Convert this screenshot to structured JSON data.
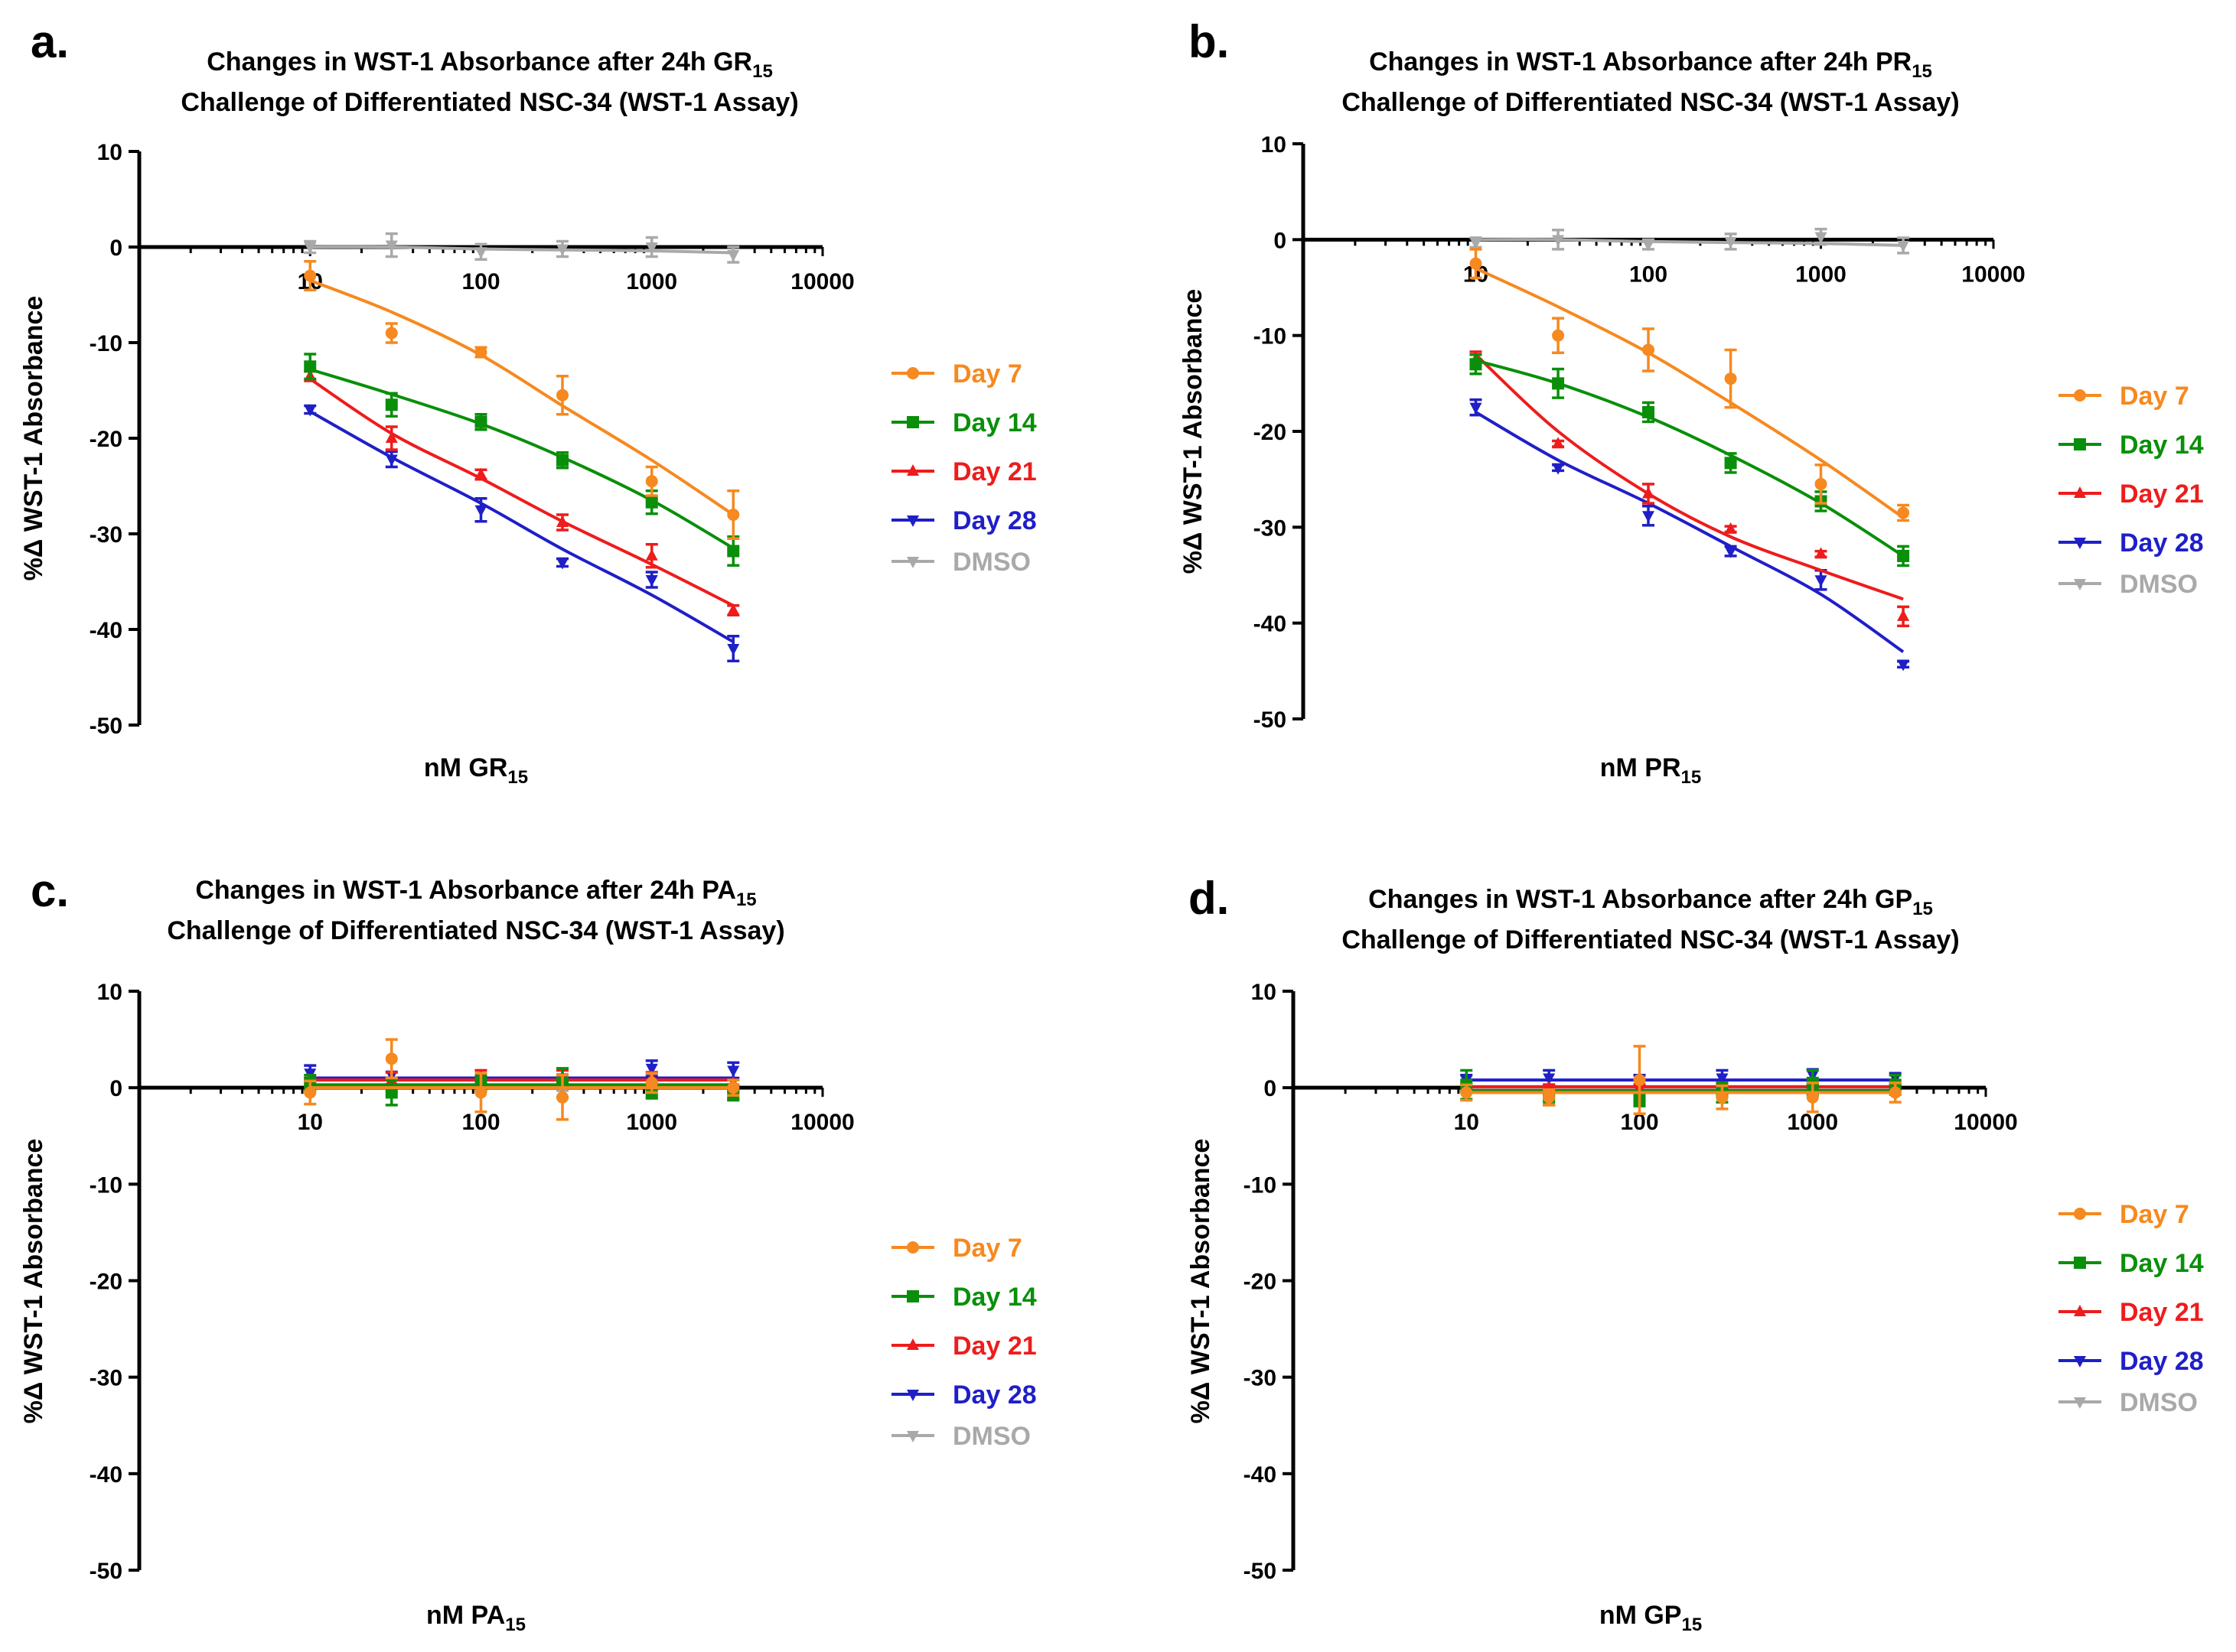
{
  "colors": {
    "Day 7": "#f6891f",
    "Day 14": "#0a8f0a",
    "Day 21": "#ee1c1c",
    "Day 28": "#1f1fc8",
    "DMSO": "#a9a9a9"
  },
  "chart_data": [
    {
      "letter": "a.",
      "type": "line",
      "title_line1": "Changes in WST-1 Absorbance after 24h GR",
      "title_sub": "15",
      "title_line2": "Challenge of Differentiated NSC-34 (WST-1 Assay)",
      "xlabel": "nM GR",
      "xlabel_sub": "15",
      "ylabel": "%Δ WST-1 Absorbance",
      "xscale": "log",
      "xlim": [
        1,
        10000
      ],
      "ylim": [
        -50,
        10
      ],
      "xtick_labels": [
        "10",
        "100",
        "1000",
        "10000"
      ],
      "ytick_labels": [
        "10",
        "0",
        "-10",
        "-20",
        "-30",
        "-40",
        "-50"
      ],
      "legend": [
        "Day 7",
        "Day 14",
        "Day 21",
        "Day 28",
        "DMSO"
      ],
      "x": [
        10,
        30,
        100,
        300,
        1000,
        3000
      ],
      "series": [
        {
          "name": "Day 7",
          "values": [
            -3,
            -9,
            -11,
            -15.5,
            -24.5,
            -28
          ],
          "errors": [
            1.5,
            1,
            0.5,
            2,
            1.5,
            2.5
          ],
          "fit": [
            -3.5,
            -6.8,
            -11.3,
            -16.6,
            -22.3,
            -28.0
          ]
        },
        {
          "name": "Day 14",
          "values": [
            -12.5,
            -16.5,
            -18.3,
            -22.3,
            -26.7,
            -31.8
          ],
          "errors": [
            1.3,
            1.2,
            0.8,
            0.8,
            1.2,
            1.5
          ],
          "fit": [
            -12.8,
            -15.4,
            -18.5,
            -22.0,
            -26.5,
            -31.5
          ]
        },
        {
          "name": "Day 21",
          "values": [
            -13.5,
            -20,
            -23.8,
            -28.8,
            -32.3,
            -38
          ],
          "errors": [
            0.5,
            1.2,
            0.5,
            0.8,
            1.2,
            0.5
          ],
          "fit": [
            -13.8,
            -19.5,
            -24.2,
            -28.7,
            -33.2,
            -37.5
          ]
        },
        {
          "name": "Day 28",
          "values": [
            -17,
            -22.2,
            -27.5,
            -33,
            -34.8,
            -42
          ],
          "errors": [
            0.4,
            0.8,
            1.2,
            0.4,
            0.8,
            1.3
          ],
          "fit": [
            -17.2,
            -22.0,
            -26.8,
            -31.6,
            -36.4,
            -41.3
          ]
        },
        {
          "name": "DMSO",
          "values": [
            0,
            0.2,
            -0.5,
            -0.2,
            0,
            -0.8
          ],
          "errors": [
            0.6,
            1.2,
            0.8,
            0.8,
            1.0,
            0.8
          ],
          "fit": [
            0,
            0,
            -0.2,
            -0.3,
            -0.4,
            -0.6
          ]
        }
      ]
    },
    {
      "letter": "b.",
      "type": "line",
      "title_line1": "Changes in WST-1 Absorbance after 24h PR",
      "title_sub": "15",
      "title_line2": "Challenge of Differentiated NSC-34 (WST-1 Assay)",
      "xlabel": "nM PR",
      "xlabel_sub": "15",
      "ylabel": "%Δ WST-1 Absorbance",
      "xscale": "log",
      "xlim": [
        1,
        10000
      ],
      "ylim": [
        -50,
        10
      ],
      "xtick_labels": [
        "10",
        "100",
        "1000",
        "10000"
      ],
      "ytick_labels": [
        "10",
        "0",
        "-10",
        "-20",
        "-30",
        "-40",
        "-50"
      ],
      "legend": [
        "Day 7",
        "Day 14",
        "Day 21",
        "Day 28",
        "DMSO"
      ],
      "x": [
        10,
        30,
        100,
        300,
        1000,
        3000
      ],
      "series": [
        {
          "name": "Day 7",
          "values": [
            -2.5,
            -10,
            -11.5,
            -14.5,
            -25.5,
            -28.5
          ],
          "errors": [
            1.5,
            1.8,
            2.2,
            3.0,
            2.0,
            0.8
          ],
          "fit": [
            -3.0,
            -7.0,
            -11.8,
            -17.0,
            -23.0,
            -29.0
          ]
        },
        {
          "name": "Day 14",
          "values": [
            -13,
            -15,
            -18,
            -23.3,
            -27.3,
            -33
          ],
          "errors": [
            1.0,
            1.5,
            1.0,
            1.0,
            1.0,
            1.0
          ],
          "fit": [
            -12.6,
            -15.0,
            -18.5,
            -22.5,
            -27.5,
            -33.0
          ]
        },
        {
          "name": "Day 21",
          "values": [
            -12.5,
            -21.3,
            -26.5,
            -30.2,
            -32.8,
            -39.3
          ],
          "errors": [
            0.8,
            0.3,
            1.0,
            0.3,
            0.3,
            1.0
          ],
          "fit": [
            -12.0,
            -20.0,
            -26.5,
            -31.0,
            -34.5,
            -37.5
          ]
        },
        {
          "name": "Day 28",
          "values": [
            -17.5,
            -23.8,
            -28.8,
            -32.5,
            -35.5,
            -44.3
          ],
          "errors": [
            0.8,
            0.3,
            1.0,
            0.5,
            1.0,
            0.3
          ],
          "fit": [
            -18.0,
            -23.0,
            -27.5,
            -32.0,
            -37.0,
            -43.0
          ]
        },
        {
          "name": "DMSO",
          "values": [
            -0.3,
            0,
            -0.5,
            -0.2,
            0.3,
            -0.6
          ],
          "errors": [
            0.5,
            1.0,
            0.5,
            0.8,
            0.8,
            0.8
          ],
          "fit": [
            0,
            0,
            -0.2,
            -0.3,
            -0.4,
            -0.6
          ]
        }
      ]
    },
    {
      "letter": "c.",
      "type": "line",
      "title_line1": "Changes in WST-1 Absorbance after 24h PA",
      "title_sub": "15",
      "title_line2": "Challenge of Differentiated NSC-34 (WST-1 Assay)",
      "xlabel": "nM PA",
      "xlabel_sub": "15",
      "ylabel": "%Δ WST-1 Absorbance",
      "xscale": "log",
      "xlim": [
        1,
        10000
      ],
      "ylim": [
        -50,
        10
      ],
      "xtick_labels": [
        "10",
        "100",
        "1000",
        "10000"
      ],
      "ytick_labels": [
        "10",
        "0",
        "-10",
        "-20",
        "-30",
        "-40",
        "-50"
      ],
      "legend": [
        "Day 7",
        "Day 14",
        "Day 21",
        "Day 28",
        "DMSO"
      ],
      "x": [
        10,
        30,
        100,
        300,
        1000,
        3000
      ],
      "series": [
        {
          "name": "Day 7",
          "values": [
            -0.5,
            3,
            -0.5,
            -1,
            0.5,
            0
          ],
          "errors": [
            1.2,
            2.0,
            2.0,
            2.3,
            1.0,
            0.8
          ],
          "fit": [
            0,
            0,
            0,
            0,
            0,
            0
          ]
        },
        {
          "name": "Day 14",
          "values": [
            0.5,
            -0.5,
            0.5,
            0.5,
            -0.5,
            -0.8
          ],
          "errors": [
            0.8,
            1.3,
            0.8,
            1.5,
            0.6,
            0.4
          ],
          "fit": [
            0.3,
            0.3,
            0.3,
            0.3,
            0.3,
            0.3
          ]
        },
        {
          "name": "Day 21",
          "values": [
            0.5,
            0.8,
            1.2,
            1.0,
            1.0,
            0.5
          ],
          "errors": [
            0.5,
            0.8,
            0.6,
            0.8,
            0.6,
            0.3
          ],
          "fit": [
            0.8,
            0.8,
            0.8,
            0.8,
            0.8,
            0.8
          ]
        },
        {
          "name": "Day 28",
          "values": [
            1.5,
            1.3,
            1.0,
            1.0,
            2.0,
            1.8
          ],
          "errors": [
            0.8,
            0.3,
            0.5,
            0.3,
            0.8,
            0.8
          ],
          "fit": [
            1.0,
            1.0,
            1.0,
            1.0,
            1.0,
            1.0
          ]
        },
        {
          "name": "DMSO",
          "values": [
            0,
            0,
            0,
            0,
            0,
            0
          ],
          "errors": [
            0.3,
            0.3,
            0.3,
            0.3,
            0.3,
            0.3
          ],
          "fit": [
            0,
            0,
            0,
            0,
            0,
            0
          ]
        }
      ]
    },
    {
      "letter": "d.",
      "type": "line",
      "title_line1": "Changes in WST-1 Absorbance after 24h GP",
      "title_sub": "15",
      "title_line2": "Challenge of Differentiated NSC-34 (WST-1 Assay)",
      "xlabel": "nM GP",
      "xlabel_sub": "15",
      "ylabel": "%Δ WST-1 Absorbance",
      "xscale": "log",
      "xlim": [
        1,
        10000
      ],
      "ylim": [
        -50,
        10
      ],
      "xtick_labels": [
        "10",
        "100",
        "1000",
        "10000"
      ],
      "ytick_labels": [
        "10",
        "0",
        "-10",
        "-20",
        "-30",
        "-40",
        "-50"
      ],
      "legend": [
        "Day 7",
        "Day 14",
        "Day 21",
        "Day 28",
        "DMSO"
      ],
      "x": [
        10,
        30,
        100,
        300,
        1000,
        3000
      ],
      "series": [
        {
          "name": "Day 7",
          "values": [
            -0.5,
            -1,
            0.8,
            -1,
            -1,
            -0.5
          ],
          "errors": [
            0.8,
            0.8,
            3.5,
            1.2,
            1.5,
            1.0
          ],
          "fit": [
            -0.5,
            -0.5,
            -0.5,
            -0.5,
            -0.5,
            -0.5
          ]
        },
        {
          "name": "Day 14",
          "values": [
            0.3,
            -1,
            -1.3,
            -0.5,
            0.5,
            0.3
          ],
          "errors": [
            1.5,
            0.8,
            0.6,
            1.0,
            1.3,
            1.0
          ],
          "fit": [
            -0.3,
            -0.3,
            -0.3,
            -0.3,
            -0.3,
            -0.3
          ]
        },
        {
          "name": "Day 21",
          "values": [
            0,
            0,
            0,
            0,
            0,
            0
          ],
          "errors": [
            0.3,
            0.3,
            0.3,
            0.3,
            0.3,
            0.3
          ],
          "fit": [
            0.1,
            0.1,
            0.1,
            0.1,
            0.1,
            0.1
          ]
        },
        {
          "name": "Day 28",
          "values": [
            0.8,
            1.0,
            0.8,
            1.0,
            1.3,
            1.0
          ],
          "errors": [
            0.5,
            0.8,
            0.5,
            0.8,
            0.6,
            0.5
          ],
          "fit": [
            0.8,
            0.8,
            0.8,
            0.8,
            0.8,
            0.8
          ]
        },
        {
          "name": "DMSO",
          "values": [
            0,
            0,
            0,
            0,
            0,
            0
          ],
          "errors": [
            0.3,
            0.3,
            0.3,
            0.3,
            0.3,
            0.3
          ],
          "fit": [
            0,
            0,
            0,
            0,
            0,
            0
          ]
        }
      ]
    }
  ]
}
